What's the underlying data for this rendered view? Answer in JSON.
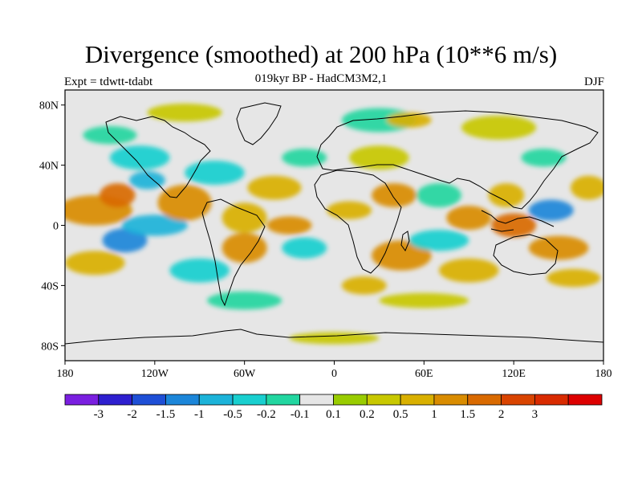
{
  "title": "Divergence (smoothed) at 200 hPa (10**6 m/s)",
  "subtitle": "019kyr BP - HadCM3M2,1",
  "experiment_label": "Expt = tdwtt-tdabt",
  "season_label": "DJF",
  "map": {
    "projection": "cylindrical equidistant",
    "lon_range": [
      -180,
      180
    ],
    "lat_range": [
      -90,
      90
    ],
    "background_color": "#e6e6e6",
    "y_ticks": [
      {
        "lat": 80,
        "label": "80N"
      },
      {
        "lat": 40,
        "label": "40N"
      },
      {
        "lat": 0,
        "label": "0"
      },
      {
        "lat": -40,
        "label": "40S"
      },
      {
        "lat": -80,
        "label": "80S"
      }
    ],
    "x_ticks": [
      {
        "lon": -180,
        "label": "180"
      },
      {
        "lon": -120,
        "label": "120W"
      },
      {
        "lon": -60,
        "label": "60W"
      },
      {
        "lon": 0,
        "label": "0"
      },
      {
        "lon": 60,
        "label": "60E"
      },
      {
        "lon": 120,
        "label": "120E"
      },
      {
        "lon": 180,
        "label": "180"
      }
    ],
    "field_blobs": [
      {
        "lon": -160,
        "lat": 10,
        "rlon": 25,
        "rlat": 10,
        "value": 1.0
      },
      {
        "lon": -145,
        "lat": 20,
        "rlon": 12,
        "rlat": 8,
        "value": 1.5
      },
      {
        "lon": -140,
        "lat": -10,
        "rlon": 15,
        "rlat": 8,
        "value": -1.5
      },
      {
        "lon": -160,
        "lat": -25,
        "rlon": 20,
        "rlat": 8,
        "value": 0.5
      },
      {
        "lon": -130,
        "lat": 45,
        "rlon": 20,
        "rlat": 8,
        "value": -0.5
      },
      {
        "lon": -125,
        "lat": 30,
        "rlon": 12,
        "rlat": 6,
        "value": -1.0
      },
      {
        "lon": -120,
        "lat": 0,
        "rlon": 22,
        "rlat": 7,
        "value": -1.0
      },
      {
        "lon": -100,
        "lat": 15,
        "rlon": 18,
        "rlat": 12,
        "value": 1.0
      },
      {
        "lon": -80,
        "lat": 35,
        "rlon": 20,
        "rlat": 8,
        "value": -0.5
      },
      {
        "lon": -60,
        "lat": 5,
        "rlon": 15,
        "rlat": 10,
        "value": 0.5
      },
      {
        "lon": -60,
        "lat": -15,
        "rlon": 15,
        "rlat": 10,
        "value": 1.0
      },
      {
        "lon": -90,
        "lat": -30,
        "rlon": 20,
        "rlat": 8,
        "value": -0.5
      },
      {
        "lon": -40,
        "lat": 25,
        "rlon": 18,
        "rlat": 8,
        "value": 0.5
      },
      {
        "lon": -30,
        "lat": 0,
        "rlon": 15,
        "rlat": 6,
        "value": 1.0
      },
      {
        "lon": -20,
        "lat": -15,
        "rlon": 15,
        "rlat": 7,
        "value": -0.5
      },
      {
        "lon": -20,
        "lat": 45,
        "rlon": 15,
        "rlat": 6,
        "value": -0.2
      },
      {
        "lon": 10,
        "lat": 10,
        "rlon": 15,
        "rlat": 6,
        "value": 0.5
      },
      {
        "lon": 30,
        "lat": 45,
        "rlon": 20,
        "rlat": 8,
        "value": 0.2
      },
      {
        "lon": 30,
        "lat": 70,
        "rlon": 25,
        "rlat": 8,
        "value": -0.2
      },
      {
        "lon": 40,
        "lat": 20,
        "rlon": 15,
        "rlat": 8,
        "value": 1.0
      },
      {
        "lon": 45,
        "lat": -20,
        "rlon": 20,
        "rlat": 10,
        "value": 1.0
      },
      {
        "lon": 20,
        "lat": -40,
        "rlon": 15,
        "rlat": 6,
        "value": 0.5
      },
      {
        "lon": 70,
        "lat": -10,
        "rlon": 20,
        "rlat": 7,
        "value": -0.5
      },
      {
        "lon": 70,
        "lat": 20,
        "rlon": 15,
        "rlat": 8,
        "value": -0.2
      },
      {
        "lon": 90,
        "lat": 5,
        "rlon": 15,
        "rlat": 8,
        "value": 1.0
      },
      {
        "lon": 90,
        "lat": -30,
        "rlon": 20,
        "rlat": 8,
        "value": 0.5
      },
      {
        "lon": 115,
        "lat": 20,
        "rlon": 12,
        "rlat": 8,
        "value": 0.5
      },
      {
        "lon": 120,
        "lat": 0,
        "rlon": 15,
        "rlat": 8,
        "value": 1.5
      },
      {
        "lon": 145,
        "lat": 10,
        "rlon": 15,
        "rlat": 7,
        "value": -1.5
      },
      {
        "lon": 150,
        "lat": -15,
        "rlon": 20,
        "rlat": 8,
        "value": 1.0
      },
      {
        "lon": 170,
        "lat": 25,
        "rlon": 12,
        "rlat": 8,
        "value": 0.5
      },
      {
        "lon": 140,
        "lat": 45,
        "rlon": 15,
        "rlat": 6,
        "value": -0.2
      },
      {
        "lon": 160,
        "lat": -35,
        "rlon": 18,
        "rlat": 6,
        "value": 0.5
      },
      {
        "lon": -150,
        "lat": 60,
        "rlon": 18,
        "rlat": 6,
        "value": -0.2
      },
      {
        "lon": -60,
        "lat": -50,
        "rlon": 25,
        "rlat": 6,
        "value": -0.2
      },
      {
        "lon": 60,
        "lat": -50,
        "rlon": 30,
        "rlat": 5,
        "value": 0.2
      },
      {
        "lon": 0,
        "lat": -75,
        "rlon": 30,
        "rlat": 4,
        "value": 0.2
      },
      {
        "lon": 110,
        "lat": 65,
        "rlon": 25,
        "rlat": 8,
        "value": 0.2
      },
      {
        "lon": -100,
        "lat": 75,
        "rlon": 25,
        "rlat": 6,
        "value": 0.2
      },
      {
        "lon": 50,
        "lat": 70,
        "rlon": 15,
        "rlat": 5,
        "value": 0.5
      }
    ]
  },
  "colorbar": {
    "colors": [
      "#7a1fe0",
      "#2e1fcf",
      "#1e4fd6",
      "#1c86d9",
      "#1cb3d9",
      "#19cfcf",
      "#22d6a0",
      "#e6e6e6",
      "#99cc00",
      "#c8c800",
      "#d9b000",
      "#d98c00",
      "#d96a00",
      "#d94400",
      "#d92b00",
      "#dd0000"
    ],
    "labels": [
      "-3",
      "-2",
      "-1.5",
      "-1",
      "-0.5",
      "-0.2",
      "-0.1",
      "0.1",
      "0.2",
      "0.5",
      "1",
      "1.5",
      "2",
      "3"
    ],
    "levels": [
      -3,
      -2,
      -1.5,
      -1,
      -0.5,
      -0.2,
      -0.1,
      0.1,
      0.2,
      0.5,
      1,
      1.5,
      2,
      3
    ]
  }
}
